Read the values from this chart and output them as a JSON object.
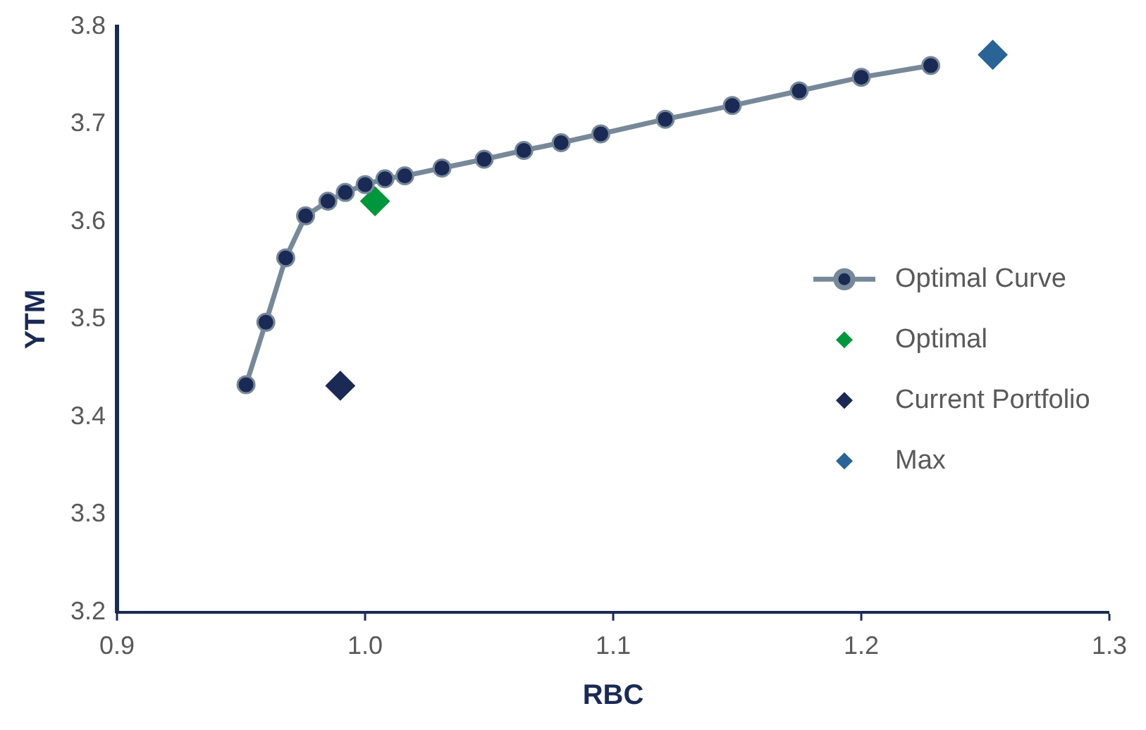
{
  "chart_data": {
    "type": "scatter",
    "xlabel": "RBC",
    "ylabel": "YTM",
    "xlim": [
      0.9,
      1.3
    ],
    "xticks": [
      {
        "value": 0.9,
        "label": "0.9"
      },
      {
        "value": 1.0,
        "label": "1.0"
      },
      {
        "value": 1.1,
        "label": "1.1"
      },
      {
        "value": 1.2,
        "label": "1.2"
      },
      {
        "value": 1.3,
        "label": "1.3"
      }
    ],
    "ylim": [
      3.2,
      3.8
    ],
    "yticks": [
      {
        "value": 3.2,
        "label": "3.2"
      },
      {
        "value": 3.3,
        "label": "3.3"
      },
      {
        "value": 3.4,
        "label": "3.4"
      },
      {
        "value": 3.5,
        "label": "3.5"
      },
      {
        "value": 3.6,
        "label": "3.6"
      },
      {
        "value": 3.7,
        "label": "3.7"
      },
      {
        "value": 3.8,
        "label": "3.8"
      }
    ],
    "grid": false,
    "legend": "right",
    "series": [
      {
        "name": "Optimal Curve",
        "type": "line",
        "marker": "circle",
        "line_style": "solid",
        "color": "#778899",
        "x": [
          0.952,
          0.96,
          0.968,
          0.976,
          0.985,
          0.992,
          1.0,
          1.008,
          1.016,
          1.031,
          1.048,
          1.064,
          1.079,
          1.095,
          1.121,
          1.148,
          1.175,
          1.2,
          1.228
        ],
        "values": [
          3.433,
          3.497,
          3.563,
          3.606,
          3.621,
          3.63,
          3.638,
          3.644,
          3.647,
          3.655,
          3.664,
          3.673,
          3.681,
          3.69,
          3.705,
          3.719,
          3.734,
          3.748,
          3.76
        ]
      },
      {
        "name": "Optimal",
        "type": "scatter",
        "marker": "diamond",
        "color": "#00963c",
        "x": [
          1.004
        ],
        "values": [
          3.621
        ]
      },
      {
        "name": "Current Portfolio",
        "type": "scatter",
        "marker": "diamond",
        "color": "#1a2a55",
        "x": [
          0.99
        ],
        "values": [
          3.432
        ]
      },
      {
        "name": "Max",
        "type": "scatter",
        "marker": "diamond",
        "color": "#2a6496",
        "x": [
          1.253
        ],
        "values": [
          3.771
        ]
      }
    ]
  }
}
